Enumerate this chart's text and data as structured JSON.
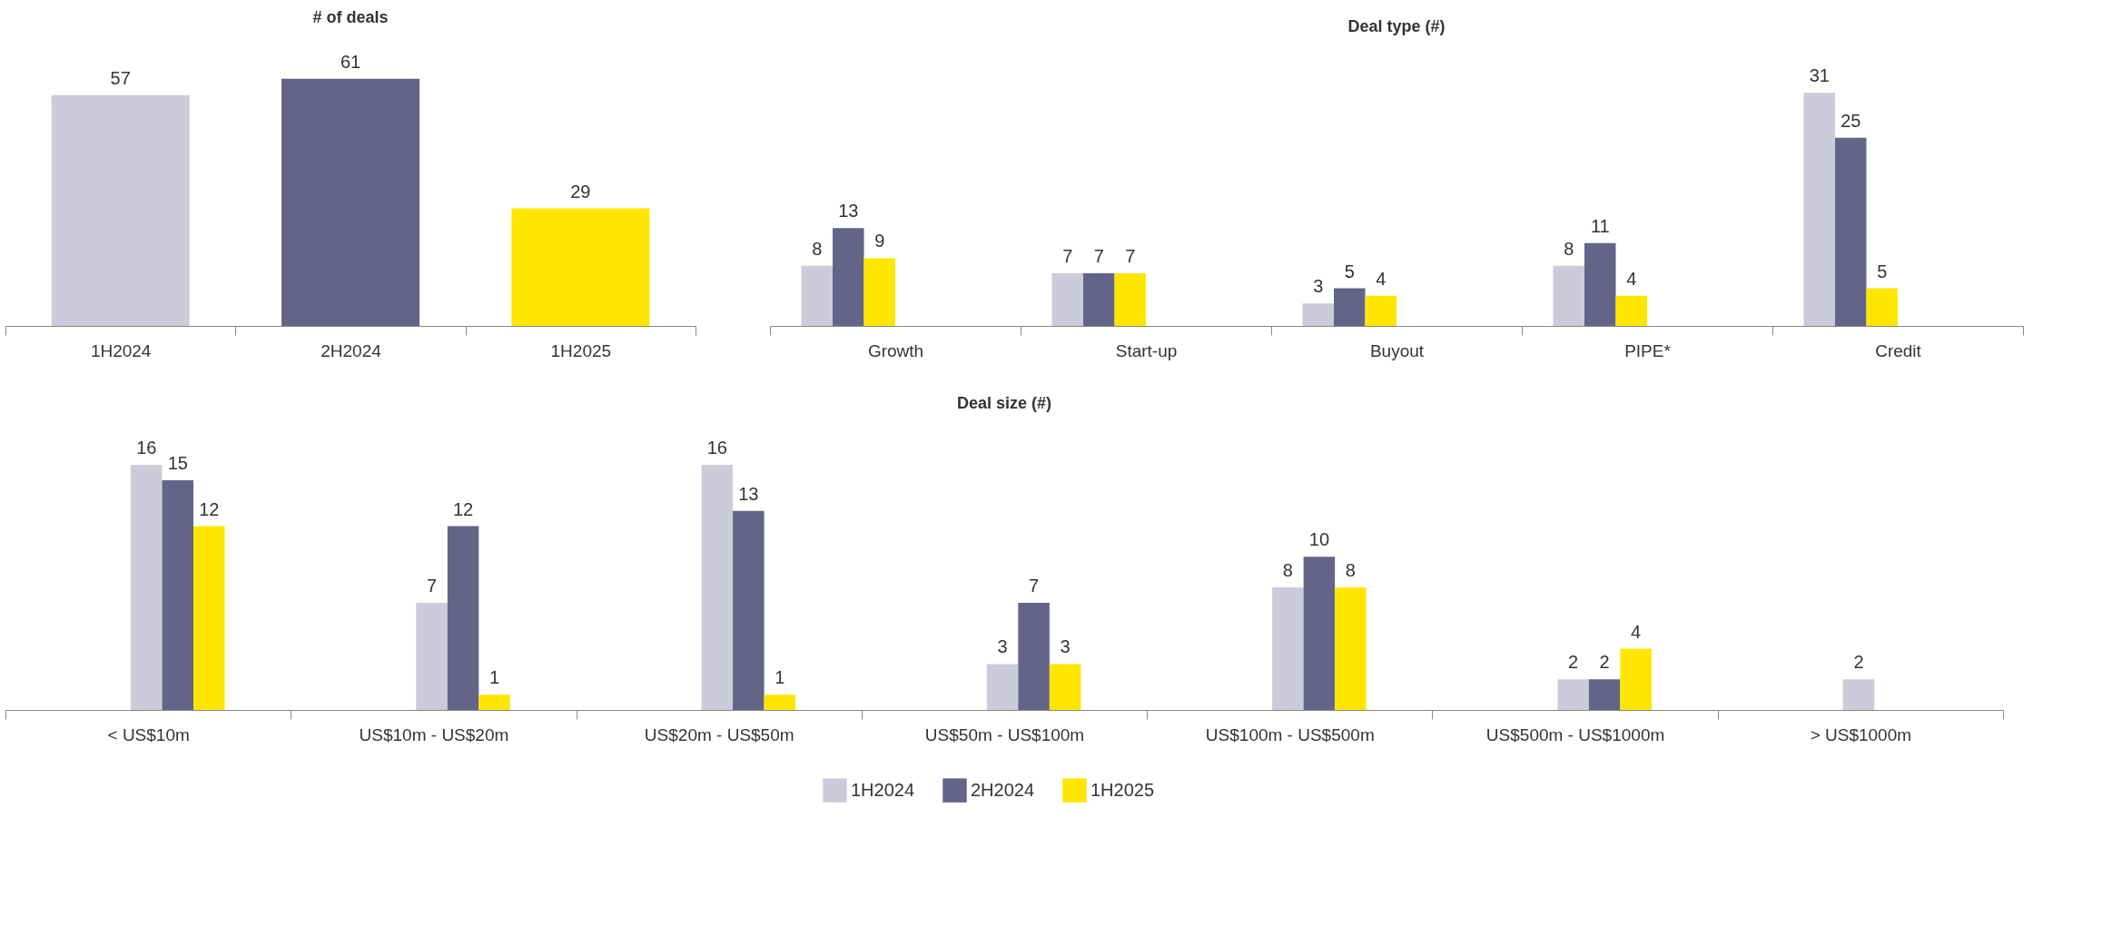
{
  "chart_data": [
    {
      "type": "bar",
      "title": "# of deals",
      "categories": [
        "1H2024",
        "2H2024",
        "1H2025"
      ],
      "values": [
        57,
        61,
        29
      ],
      "colors": [
        "#cccbd9",
        "#646489",
        "#ffe600"
      ],
      "data_labels": true,
      "tick_labels": "x",
      "legend": false
    },
    {
      "type": "bar",
      "title": "Deal type (#)",
      "categories": [
        "Growth",
        "Start-up",
        "Buyout",
        "PIPE*",
        "Credit"
      ],
      "series": [
        {
          "color": "#cccbd9",
          "values": [
            8,
            7,
            3,
            8,
            31
          ]
        },
        {
          "color": "#646489",
          "values": [
            13,
            7,
            5,
            11,
            25
          ]
        },
        {
          "color": "#ffe600",
          "values": [
            9,
            7,
            4,
            4,
            5
          ]
        }
      ],
      "data_labels": true,
      "tick_labels": "x",
      "legend": false
    },
    {
      "type": "bar",
      "title": "Deal size (#)",
      "categories": [
        "< US$10m",
        "US$10m - US$20m",
        "US$20m - US$50m",
        "US$50m - US$100m",
        "US$100m - US$500m",
        "US$500m - US$1000m",
        "> US$1000m"
      ],
      "series": [
        {
          "name": "1H2024",
          "color": "#cccbd9",
          "values": [
            16,
            7,
            16,
            3,
            8,
            2,
            2
          ]
        },
        {
          "name": "2H2024",
          "color": "#646489",
          "values": [
            15,
            12,
            13,
            7,
            10,
            2,
            null
          ]
        },
        {
          "name": "1H2025",
          "color": "#ffe600",
          "values": [
            12,
            1,
            1,
            3,
            8,
            4,
            null
          ]
        }
      ],
      "data_labels": true,
      "tick_labels": "x",
      "legend": "bottom"
    }
  ]
}
